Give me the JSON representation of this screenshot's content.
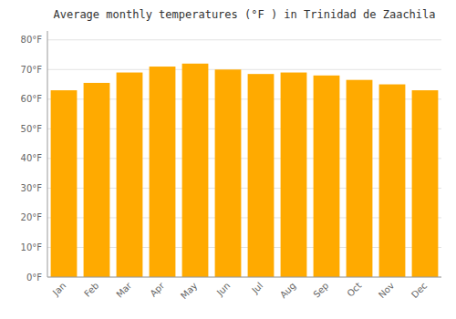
{
  "chart_data": {
    "type": "bar",
    "title": "Average monthly temperatures (°F ) in Trinidad de Zaachila",
    "categories": [
      "Jan",
      "Feb",
      "Mar",
      "Apr",
      "May",
      "Jun",
      "Jul",
      "Aug",
      "Sep",
      "Oct",
      "Nov",
      "Dec"
    ],
    "values": [
      63,
      65.5,
      69,
      71,
      72,
      70,
      68.5,
      69,
      68,
      66.5,
      65,
      63
    ],
    "color": "#FFAA00",
    "ylim": [
      0,
      83
    ],
    "yticks": [
      {
        "value": 0,
        "label": "0°F"
      },
      {
        "value": 10,
        "label": "10°F"
      },
      {
        "value": 20,
        "label": "20°F"
      },
      {
        "value": 30,
        "label": "30°F"
      },
      {
        "value": 40,
        "label": "40°F"
      },
      {
        "value": 50,
        "label": "50°F"
      },
      {
        "value": 60,
        "label": "60°F"
      },
      {
        "value": 70,
        "label": "70°F"
      },
      {
        "value": 80,
        "label": "80°F"
      }
    ],
    "grid": true
  }
}
